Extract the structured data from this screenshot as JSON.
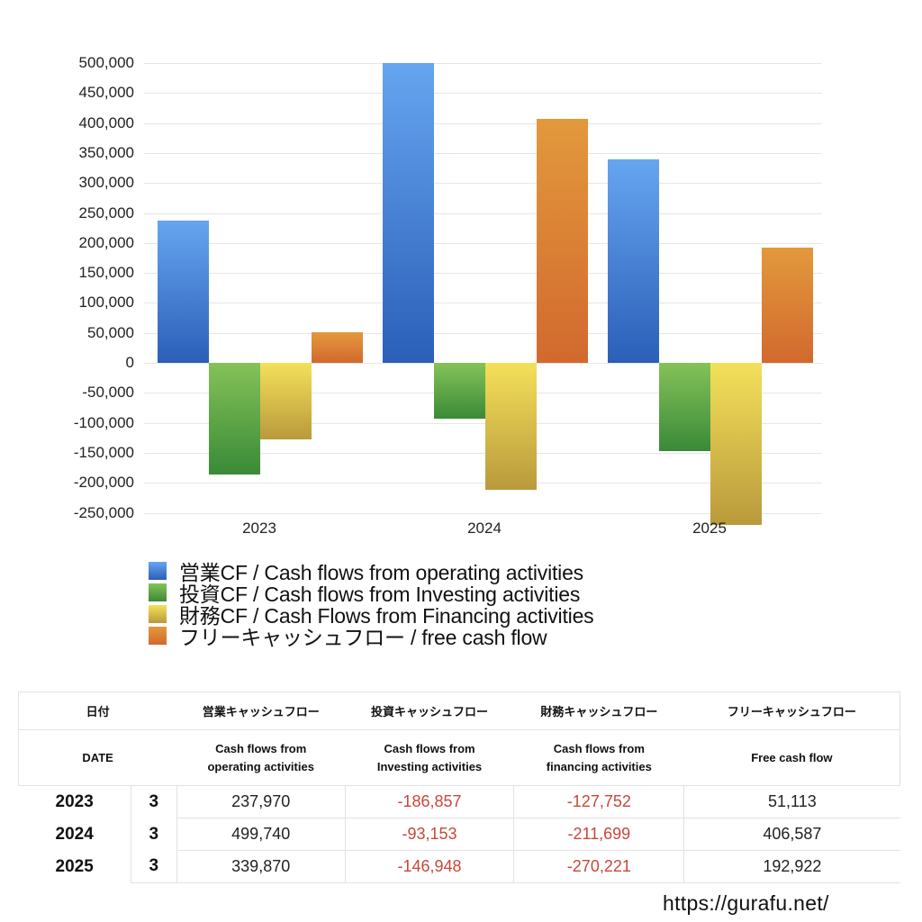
{
  "chart_data": {
    "type": "bar",
    "title": "",
    "xlabel": "",
    "ylabel": "",
    "categories": [
      "2023",
      "2024",
      "2025"
    ],
    "ylim": [
      -250000,
      500000
    ],
    "yticks": [
      500000,
      450000,
      400000,
      350000,
      300000,
      250000,
      200000,
      150000,
      100000,
      50000,
      0,
      -50000,
      -100000,
      -150000,
      -200000,
      -250000
    ],
    "ytick_labels": [
      "500,000",
      "450,000",
      "400,000",
      "350,000",
      "300,000",
      "250,000",
      "200,000",
      "150,000",
      "100,000",
      "50,000",
      "0",
      "-50,000",
      "-100,000",
      "-150,000",
      "-200,000",
      "-250,000"
    ],
    "grid": true,
    "legend_position": "bottom",
    "series": [
      {
        "name": "営業CF / Cash flows from operating activities",
        "color_top": "#66a5f0",
        "color_bottom": "#2b5fb8",
        "values": [
          237970,
          499740,
          339870
        ]
      },
      {
        "name": "投資CF / Cash flows from Investing activities",
        "color_top": "#85c258",
        "color_bottom": "#3a8a38",
        "values": [
          -186857,
          -93153,
          -146948
        ]
      },
      {
        "name": "財務CF / Cash Flows from Financing activities",
        "color_top": "#f4e05a",
        "color_bottom": "#b99a3c",
        "values": [
          -127752,
          -211699,
          -270221
        ]
      },
      {
        "name": "フリーキャッシュフロー / free cash flow",
        "color_top": "#e3993c",
        "color_bottom": "#d2692e",
        "values": [
          51113,
          406587,
          192922
        ]
      }
    ]
  },
  "legend": {
    "items": [
      {
        "label": "営業CF / Cash flows from operating activities",
        "color": "#3f7fd6"
      },
      {
        "label": "投資CF / Cash flows from Investing activities",
        "color": "#55a146"
      },
      {
        "label": "財務CF / Cash Flows from Financing activities",
        "color": "#dcc24a"
      },
      {
        "label": "フリーキャッシュフロー / free cash flow",
        "color": "#db7a33"
      }
    ]
  },
  "table": {
    "header_jp": [
      "日付",
      "営業キャッシュフロー",
      "投資キャッシュフロー",
      "財務キャッシュフロー",
      "フリーキャッシュフロー"
    ],
    "header_en": [
      "DATE",
      "Cash flows from\noperating activities",
      "Cash flows from\nInvesting activities",
      "Cash flows from\nfinancing activities",
      "Free cash flow"
    ],
    "rows": [
      {
        "year": "2023",
        "month": "3",
        "operating": "237,970",
        "investing": "-186,857",
        "financing": "-127,752",
        "free": "51,113"
      },
      {
        "year": "2024",
        "month": "3",
        "operating": "499,740",
        "investing": "-93,153",
        "financing": "-211,699",
        "free": "406,587"
      },
      {
        "year": "2025",
        "month": "3",
        "operating": "339,870",
        "investing": "-146,948",
        "financing": "-270,221",
        "free": "192,922"
      }
    ],
    "negative_color": "#c8473a"
  },
  "source": "https://gurafu.net/"
}
